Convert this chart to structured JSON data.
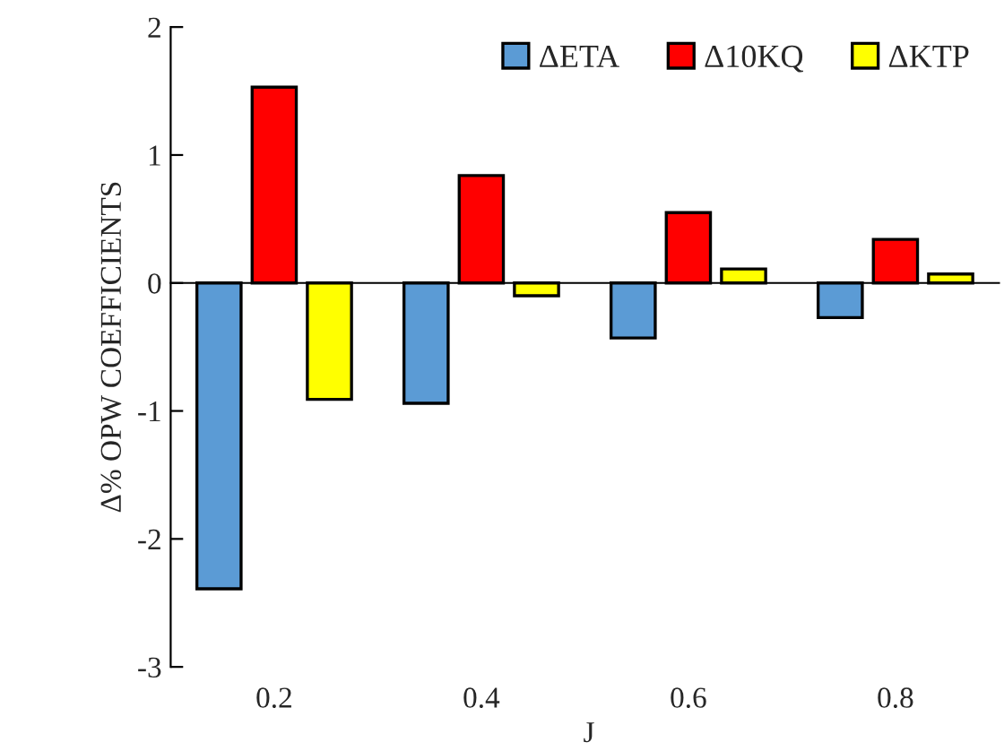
{
  "chart_data": {
    "type": "bar",
    "xlabel": "J",
    "ylabel": "Δ% OPW COEFFICIENTS",
    "categories": [
      "0.2",
      "0.4",
      "0.6",
      "0.8"
    ],
    "series": [
      {
        "name": "ΔETA",
        "color": "#5b9bd5",
        "values": [
          -2.39,
          -0.94,
          -0.43,
          -0.27
        ]
      },
      {
        "name": "Δ10KQ",
        "color": "#ff0000",
        "values": [
          1.53,
          0.84,
          0.55,
          0.34
        ]
      },
      {
        "name": "ΔKTP",
        "color": "#ffff00",
        "values": [
          -0.91,
          -0.1,
          0.11,
          0.07
        ]
      }
    ],
    "ylim": [
      -3,
      2
    ],
    "yticks": [
      -3,
      -2,
      -1,
      0,
      1,
      2
    ],
    "legend": "top right"
  }
}
